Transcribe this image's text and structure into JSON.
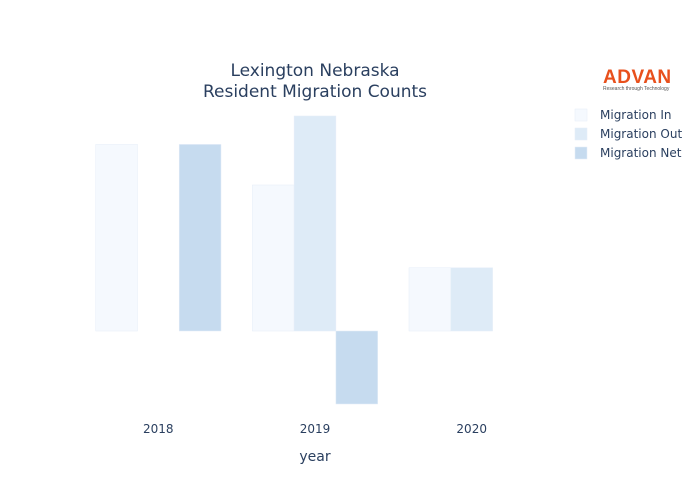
{
  "chart_data": {
    "type": "bar",
    "title_line1": "Lexington Nebraska",
    "title_line2": "Resident Migration Counts",
    "xlabel": "year",
    "ylabel": "",
    "categories": [
      "2018",
      "2019",
      "2020"
    ],
    "series": [
      {
        "name": "Migration In",
        "values": [
          23,
          18,
          7.8
        ],
        "color": "#f5f9fe"
      },
      {
        "name": "Migration Out",
        "values": [
          0,
          26.5,
          7.8
        ],
        "color": "#deebf7"
      },
      {
        "name": "Migration Net",
        "values": [
          23,
          -9,
          0
        ],
        "color": "#c6dbef"
      }
    ],
    "ylim": [
      -9,
      26.5
    ],
    "grid": false,
    "legend_position": "right"
  },
  "logo": {
    "name": "ADVAN",
    "tagline": "Research through Technology"
  }
}
